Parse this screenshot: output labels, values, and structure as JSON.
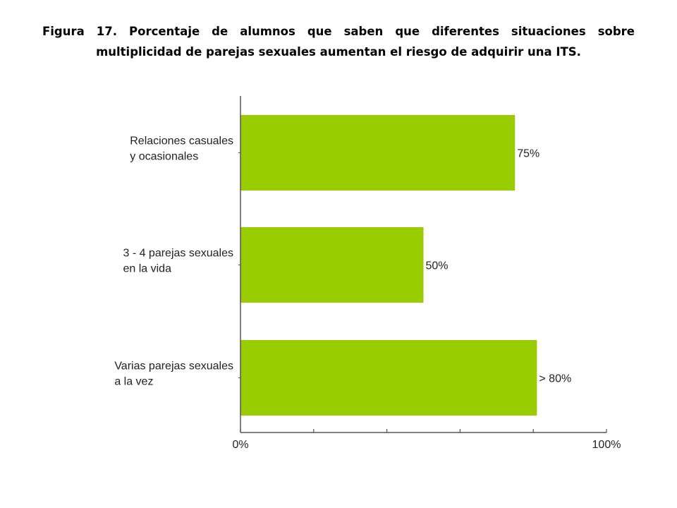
{
  "figure": {
    "title": "Figura 17.  Porcentaje de alumnos que saben que diferentes situaciones sobre multiplicidad de parejas sexuales aumentan el riesgo de adquirir una ITS."
  },
  "chart_data": {
    "type": "bar",
    "orientation": "horizontal",
    "categories": [
      [
        "Relaciones casuales",
        "y ocasionales"
      ],
      [
        "3 - 4 parejas sexuales",
        "en la vida"
      ],
      [
        "Varias parejas sexuales",
        "a la vez"
      ]
    ],
    "values": [
      75,
      50,
      81
    ],
    "value_labels": [
      "75%",
      "50%",
      "> 80%"
    ],
    "xlim": [
      0,
      100
    ],
    "x_ticks": [
      0,
      20,
      40,
      60,
      80,
      100
    ],
    "x_tick_labels": [
      "0%",
      "",
      "",
      "",
      "",
      "100%"
    ],
    "bar_color": "#99cc00",
    "grid": false,
    "legend": "none"
  }
}
